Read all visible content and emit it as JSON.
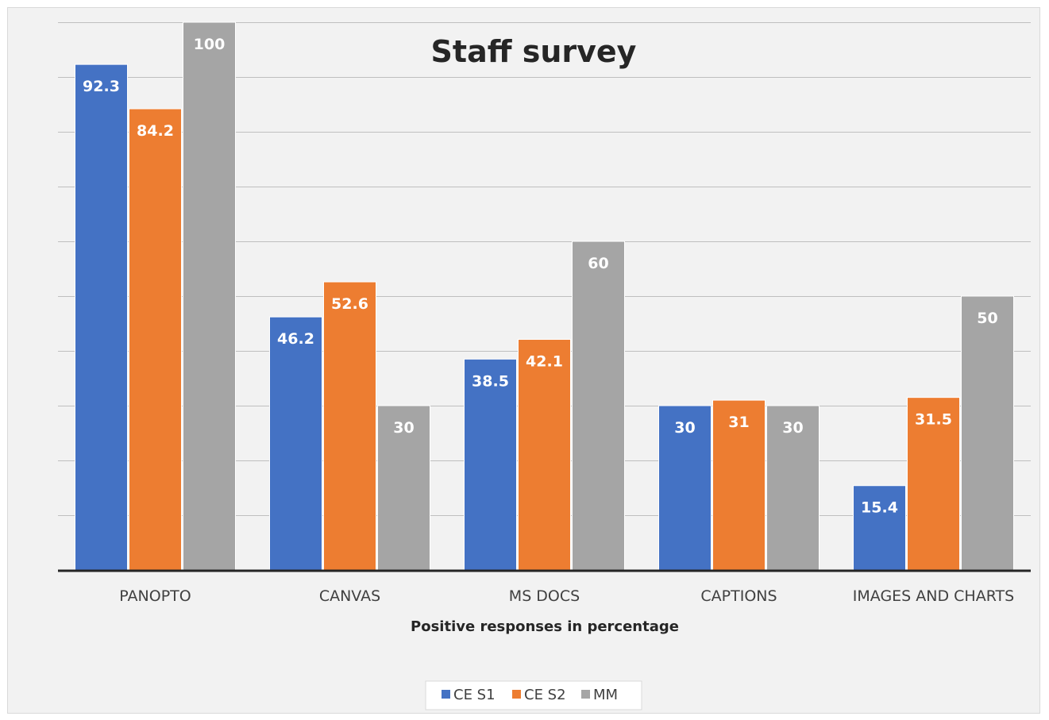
{
  "chart_data": {
    "type": "bar",
    "title": "Staff survey",
    "xlabel": "Positive responses in percentage",
    "ylabel": "",
    "categories": [
      "PANOPTO",
      "CANVAS",
      "MS DOCS",
      "CAPTIONS",
      "IMAGES AND CHARTS"
    ],
    "series": [
      {
        "name": "CE S1",
        "color": "#4472c4",
        "values": [
          92.3,
          46.2,
          38.5,
          30,
          15.4
        ]
      },
      {
        "name": "CE S2",
        "color": "#ed7d31",
        "values": [
          84.2,
          52.6,
          42.1,
          31,
          31.5
        ]
      },
      {
        "name": "MM",
        "color": "#a5a5a5",
        "values": [
          100,
          30,
          60,
          30,
          50
        ]
      }
    ],
    "ylim": [
      0,
      100
    ],
    "y_gridline_step": 10,
    "grid": true,
    "y_tick_labels_shown": false,
    "data_labels": true,
    "legend_position": "bottom"
  }
}
